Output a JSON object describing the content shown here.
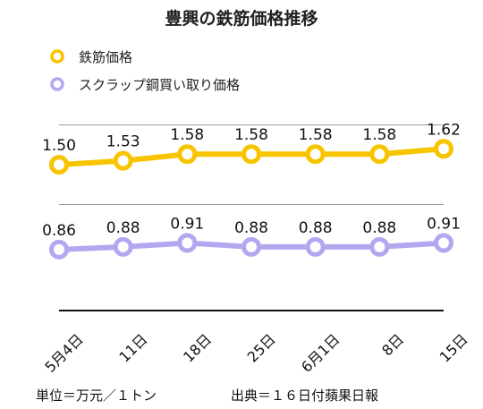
{
  "chart_data": {
    "type": "line",
    "title": "豊興の鉄筋価格推移",
    "categories": [
      "5月4日",
      "11日",
      "18日",
      "25日",
      "6月1日",
      "8日",
      "15日"
    ],
    "series": [
      {
        "name": "鉄筋価格",
        "color": "#f8c400",
        "values": [
          1.5,
          1.53,
          1.58,
          1.58,
          1.58,
          1.58,
          1.62
        ],
        "labels": [
          "1.50",
          "1.53",
          "1.58",
          "1.58",
          "1.58",
          "1.58",
          "1.62"
        ]
      },
      {
        "name": "スクラップ鋼買い取り価格",
        "color": "#b3a8f0",
        "values": [
          0.86,
          0.88,
          0.91,
          0.88,
          0.88,
          0.88,
          0.91
        ],
        "labels": [
          "0.86",
          "0.88",
          "0.91",
          "0.88",
          "0.88",
          "0.88",
          "0.91"
        ]
      }
    ],
    "ylim": [
      0.4,
      2.0
    ],
    "grid": true,
    "legend_position": "top-left",
    "unit_note": "単位＝万元／１トン",
    "source_note": "出典＝１６日付蘋果日報"
  }
}
